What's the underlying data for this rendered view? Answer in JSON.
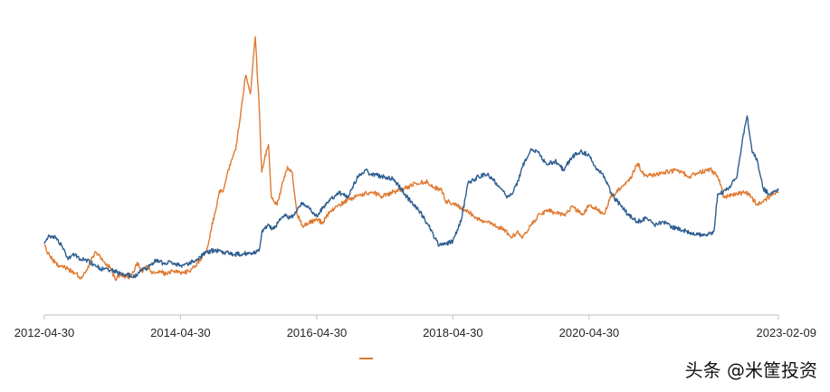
{
  "chart_data": {
    "type": "line",
    "title": "",
    "xlabel": "",
    "ylabel": "",
    "x_tick_labels": [
      "2012-04-30",
      "2014-04-30",
      "2016-04-30",
      "2018-04-30",
      "2020-04-30",
      "2023-02-09"
    ],
    "x_range": [
      "2012-04-30",
      "2023-02-09"
    ],
    "y_axis_shown": false,
    "grid": false,
    "legend_position": "bottom-center",
    "legend_marker_color": "#e07a30",
    "series": [
      {
        "color": "#e07a30",
        "points": [
          [
            "2012-04-30",
            1.23
          ],
          [
            "2012-05-20",
            1.16
          ],
          [
            "2012-06-15",
            1.1
          ],
          [
            "2012-07-20",
            1.05
          ],
          [
            "2012-08-20",
            1.03
          ],
          [
            "2012-09-20",
            1.0
          ],
          [
            "2012-10-20",
            0.98
          ],
          [
            "2012-11-10",
            0.93
          ],
          [
            "2012-12-10",
            1.0
          ],
          [
            "2013-01-10",
            1.12
          ],
          [
            "2013-02-01",
            1.17
          ],
          [
            "2013-02-20",
            1.14
          ],
          [
            "2013-03-20",
            1.08
          ],
          [
            "2013-04-20",
            1.03
          ],
          [
            "2013-05-15",
            0.92
          ],
          [
            "2013-06-10",
            0.97
          ],
          [
            "2013-07-10",
            0.95
          ],
          [
            "2013-08-10",
            0.95
          ],
          [
            "2013-09-10",
            1.08
          ],
          [
            "2013-10-05",
            1.0
          ],
          [
            "2013-11-01",
            1.05
          ],
          [
            "2013-12-01",
            0.98
          ],
          [
            "2014-01-10",
            0.99
          ],
          [
            "2014-02-20",
            0.97
          ],
          [
            "2014-03-20",
            1.0
          ],
          [
            "2014-04-30",
            0.98
          ],
          [
            "2014-06-15",
            1.0
          ],
          [
            "2014-07-20",
            1.05
          ],
          [
            "2014-08-20",
            1.12
          ],
          [
            "2014-09-20",
            1.2
          ],
          [
            "2014-10-10",
            1.37
          ],
          [
            "2014-11-05",
            1.55
          ],
          [
            "2014-11-25",
            1.73
          ],
          [
            "2014-12-15",
            1.72
          ],
          [
            "2015-01-05",
            1.88
          ],
          [
            "2015-01-30",
            2.01
          ],
          [
            "2015-02-20",
            2.1
          ],
          [
            "2015-03-20",
            2.45
          ],
          [
            "2015-04-15",
            2.78
          ],
          [
            "2015-05-10",
            2.61
          ],
          [
            "2015-06-05",
            3.13
          ],
          [
            "2015-06-25",
            2.54
          ],
          [
            "2015-07-10",
            1.9
          ],
          [
            "2015-07-25",
            2.02
          ],
          [
            "2015-08-15",
            2.15
          ],
          [
            "2015-08-30",
            1.68
          ],
          [
            "2015-09-30",
            1.6
          ],
          [
            "2015-10-25",
            1.77
          ],
          [
            "2015-11-25",
            1.95
          ],
          [
            "2015-12-20",
            1.9
          ],
          [
            "2016-01-15",
            1.52
          ],
          [
            "2016-02-15",
            1.4
          ],
          [
            "2016-03-20",
            1.44
          ],
          [
            "2016-04-30",
            1.47
          ],
          [
            "2016-05-30",
            1.44
          ],
          [
            "2016-07-15",
            1.55
          ],
          [
            "2016-08-30",
            1.6
          ],
          [
            "2016-10-15",
            1.65
          ],
          [
            "2016-12-15",
            1.69
          ],
          [
            "2017-02-15",
            1.72
          ],
          [
            "2017-04-15",
            1.68
          ],
          [
            "2017-06-15",
            1.72
          ],
          [
            "2017-08-15",
            1.75
          ],
          [
            "2017-10-15",
            1.8
          ],
          [
            "2017-12-15",
            1.81
          ],
          [
            "2018-01-20",
            1.76
          ],
          [
            "2018-03-01",
            1.74
          ],
          [
            "2018-03-20",
            1.64
          ],
          [
            "2018-04-30",
            1.62
          ],
          [
            "2018-06-15",
            1.57
          ],
          [
            "2018-07-30",
            1.53
          ],
          [
            "2018-09-15",
            1.47
          ],
          [
            "2018-10-30",
            1.45
          ],
          [
            "2018-12-25",
            1.4
          ],
          [
            "2019-01-30",
            1.38
          ],
          [
            "2019-03-10",
            1.3
          ],
          [
            "2019-04-10",
            1.36
          ],
          [
            "2019-05-10",
            1.31
          ],
          [
            "2019-06-20",
            1.41
          ],
          [
            "2019-08-10",
            1.52
          ],
          [
            "2019-09-20",
            1.55
          ],
          [
            "2019-10-30",
            1.53
          ],
          [
            "2019-12-20",
            1.51
          ],
          [
            "2020-01-30",
            1.59
          ],
          [
            "2020-02-25",
            1.55
          ],
          [
            "2020-03-25",
            1.51
          ],
          [
            "2020-04-30",
            1.6
          ],
          [
            "2020-06-15",
            1.56
          ],
          [
            "2020-07-20",
            1.52
          ],
          [
            "2020-08-20",
            1.67
          ],
          [
            "2020-10-15",
            1.75
          ],
          [
            "2020-12-01",
            1.82
          ],
          [
            "2021-01-15",
            1.98
          ],
          [
            "2021-02-20",
            1.86
          ],
          [
            "2021-04-15",
            1.88
          ],
          [
            "2021-06-15",
            1.9
          ],
          [
            "2021-08-15",
            1.92
          ],
          [
            "2021-10-20",
            1.86
          ],
          [
            "2021-12-20",
            1.9
          ],
          [
            "2022-02-15",
            1.92
          ],
          [
            "2022-03-30",
            1.83
          ],
          [
            "2022-04-20",
            1.67
          ],
          [
            "2022-05-20",
            1.68
          ],
          [
            "2022-06-30",
            1.7
          ],
          [
            "2022-08-20",
            1.72
          ],
          [
            "2022-10-20",
            1.6
          ],
          [
            "2022-11-30",
            1.65
          ],
          [
            "2023-01-15",
            1.7
          ],
          [
            "2023-02-09",
            1.71
          ]
        ]
      },
      {
        "color": "#2e5d8f",
        "points": [
          [
            "2012-04-30",
            1.25
          ],
          [
            "2012-05-20",
            1.31
          ],
          [
            "2012-06-15",
            1.32
          ],
          [
            "2012-07-10",
            1.29
          ],
          [
            "2012-08-05",
            1.22
          ],
          [
            "2012-09-01",
            1.12
          ],
          [
            "2012-10-10",
            1.15
          ],
          [
            "2012-11-10",
            1.11
          ],
          [
            "2012-12-10",
            1.1
          ],
          [
            "2013-01-20",
            1.06
          ],
          [
            "2013-03-01",
            1.02
          ],
          [
            "2013-04-20",
            1.01
          ],
          [
            "2013-06-10",
            0.98
          ],
          [
            "2013-07-20",
            0.97
          ],
          [
            "2013-08-20",
            0.94
          ],
          [
            "2013-09-30",
            1.0
          ],
          [
            "2013-11-05",
            1.03
          ],
          [
            "2013-12-20",
            1.1
          ],
          [
            "2014-01-30",
            1.07
          ],
          [
            "2014-03-10",
            1.08
          ],
          [
            "2014-04-30",
            1.05
          ],
          [
            "2014-06-15",
            1.07
          ],
          [
            "2014-08-01",
            1.11
          ],
          [
            "2014-09-15",
            1.17
          ],
          [
            "2014-11-01",
            1.19
          ],
          [
            "2014-12-20",
            1.17
          ],
          [
            "2015-02-10",
            1.15
          ],
          [
            "2015-04-01",
            1.16
          ],
          [
            "2015-05-20",
            1.16
          ],
          [
            "2015-06-25",
            1.18
          ],
          [
            "2015-07-10",
            1.35
          ],
          [
            "2015-08-10",
            1.41
          ],
          [
            "2015-09-10",
            1.38
          ],
          [
            "2015-10-10",
            1.45
          ],
          [
            "2015-11-10",
            1.5
          ],
          [
            "2015-12-10",
            1.48
          ],
          [
            "2016-01-15",
            1.55
          ],
          [
            "2016-02-15",
            1.62
          ],
          [
            "2016-03-20",
            1.57
          ],
          [
            "2016-04-30",
            1.5
          ],
          [
            "2016-06-01",
            1.57
          ],
          [
            "2016-07-15",
            1.66
          ],
          [
            "2016-08-30",
            1.71
          ],
          [
            "2016-10-15",
            1.67
          ],
          [
            "2016-12-01",
            1.84
          ],
          [
            "2017-01-15",
            1.92
          ],
          [
            "2017-02-15",
            1.88
          ],
          [
            "2017-04-15",
            1.86
          ],
          [
            "2017-06-15",
            1.84
          ],
          [
            "2017-08-15",
            1.7
          ],
          [
            "2017-09-30",
            1.6
          ],
          [
            "2017-10-30",
            1.55
          ],
          [
            "2017-12-15",
            1.43
          ],
          [
            "2018-01-15",
            1.33
          ],
          [
            "2018-02-15",
            1.23
          ],
          [
            "2018-03-15",
            1.24
          ],
          [
            "2018-04-30",
            1.27
          ],
          [
            "2018-06-15",
            1.47
          ],
          [
            "2018-07-20",
            1.8
          ],
          [
            "2018-09-15",
            1.86
          ],
          [
            "2018-11-01",
            1.88
          ],
          [
            "2018-12-20",
            1.8
          ],
          [
            "2019-02-10",
            1.68
          ],
          [
            "2019-03-10",
            1.7
          ],
          [
            "2019-04-15",
            1.82
          ],
          [
            "2019-05-20",
            2.0
          ],
          [
            "2019-06-20",
            2.1
          ],
          [
            "2019-08-01",
            2.08
          ],
          [
            "2019-09-15",
            1.97
          ],
          [
            "2019-10-30",
            2.0
          ],
          [
            "2019-12-15",
            1.92
          ],
          [
            "2020-02-01",
            2.04
          ],
          [
            "2020-03-15",
            2.09
          ],
          [
            "2020-04-30",
            2.05
          ],
          [
            "2020-06-10",
            1.93
          ],
          [
            "2020-07-20",
            1.86
          ],
          [
            "2020-09-01",
            1.69
          ],
          [
            "2020-10-15",
            1.6
          ],
          [
            "2020-12-01",
            1.5
          ],
          [
            "2021-01-15",
            1.45
          ],
          [
            "2021-03-01",
            1.48
          ],
          [
            "2021-04-15",
            1.42
          ],
          [
            "2021-06-01",
            1.45
          ],
          [
            "2021-07-15",
            1.4
          ],
          [
            "2021-09-01",
            1.38
          ],
          [
            "2021-10-20",
            1.35
          ],
          [
            "2021-12-01",
            1.33
          ],
          [
            "2022-01-20",
            1.33
          ],
          [
            "2022-02-28",
            1.36
          ],
          [
            "2022-03-20",
            1.7
          ],
          [
            "2022-04-20",
            1.72
          ],
          [
            "2022-05-20",
            1.76
          ],
          [
            "2022-07-01",
            1.85
          ],
          [
            "2022-08-01",
            2.2
          ],
          [
            "2022-08-25",
            2.41
          ],
          [
            "2022-09-20",
            2.1
          ],
          [
            "2022-10-20",
            2.0
          ],
          [
            "2022-11-20",
            1.75
          ],
          [
            "2022-12-20",
            1.7
          ],
          [
            "2023-01-15",
            1.72
          ],
          [
            "2023-02-09",
            1.75
          ]
        ]
      }
    ]
  },
  "watermark": {
    "text": "头条 @米筐投资"
  }
}
